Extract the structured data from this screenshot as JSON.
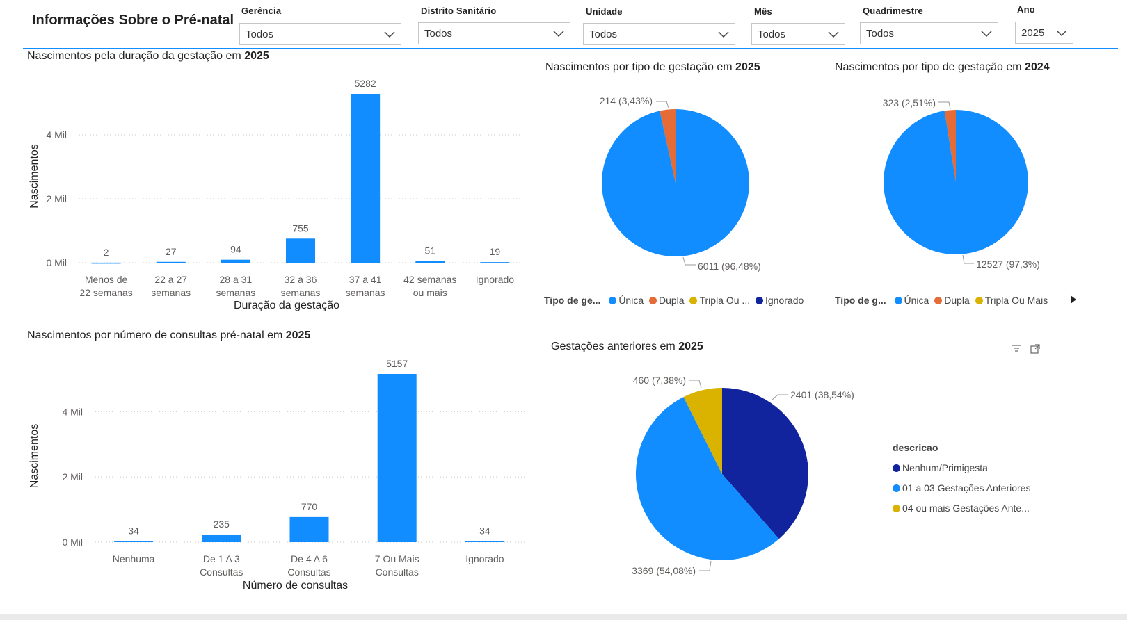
{
  "header": {
    "title": "Informações Sobre o Pré-natal"
  },
  "filters": [
    {
      "label": "Gerência",
      "value": "Todos"
    },
    {
      "label": "Distrito Sanitário",
      "value": "Todos"
    },
    {
      "label": "Unidade",
      "value": "Todos"
    },
    {
      "label": "Mês",
      "value": "Todos"
    },
    {
      "label": "Quadrimestre",
      "value": "Todos"
    },
    {
      "label": "Ano",
      "value": "2025"
    }
  ],
  "colors": {
    "accent": "#118dff",
    "unica": "#118dff",
    "dupla": "#e66c37",
    "tripla": "#d9b300",
    "ignorado": "#12239e"
  },
  "chart_data": [
    {
      "type": "bar",
      "title": "Nascimentos pela duração da gestação em",
      "title_year": "2025",
      "xlabel": "Duração da gestação",
      "ylabel": "Nascimentos",
      "categories": [
        [
          "Menos de",
          "22 semanas"
        ],
        [
          "22 a 27",
          "semanas"
        ],
        [
          "28 a 31",
          "semanas"
        ],
        [
          "32 a 36",
          "semanas"
        ],
        [
          "37 a 41",
          "semanas"
        ],
        [
          "42 semanas",
          "ou mais"
        ],
        [
          "Ignorado"
        ]
      ],
      "values": [
        2,
        27,
        94,
        755,
        5282,
        51,
        19
      ],
      "ylim": [
        0,
        5282
      ],
      "yticks": [
        {
          "v": 0,
          "label": "0 Mil"
        },
        {
          "v": 2000,
          "label": "2 Mil"
        },
        {
          "v": 4000,
          "label": "4 Mil"
        }
      ],
      "grid": true
    },
    {
      "type": "bar",
      "title": "Nascimentos por número de consultas pré-natal em",
      "title_year": "2025",
      "xlabel": "Número de consultas",
      "ylabel": "Nascimentos",
      "categories": [
        [
          "Nenhuma"
        ],
        [
          "De 1 A 3",
          "Consultas"
        ],
        [
          "De 4 A 6",
          "Consultas"
        ],
        [
          "7 Ou Mais",
          "Consultas"
        ],
        [
          "Ignorado"
        ]
      ],
      "values": [
        34,
        235,
        770,
        5157,
        34
      ],
      "ylim": [
        0,
        5157
      ],
      "yticks": [
        {
          "v": 0,
          "label": "0 Mil"
        },
        {
          "v": 2000,
          "label": "2 Mil"
        },
        {
          "v": 4000,
          "label": "4 Mil"
        }
      ],
      "grid": true
    },
    {
      "type": "pie",
      "title": "Nascimentos por tipo de gestação em",
      "title_year": "2025",
      "slices": [
        {
          "name": "Única",
          "value": 6011,
          "label": "6011 (96,48%)"
        },
        {
          "name": "Dupla",
          "value": 214,
          "label": "214 (3,43%)"
        }
      ],
      "legend": {
        "title": "Tipo de ge...",
        "items": [
          "Única",
          "Dupla",
          "Tripla Ou ...",
          "Ignorado"
        ]
      }
    },
    {
      "type": "pie",
      "title": "Nascimentos por tipo de gestação em",
      "title_year": "2024",
      "slices": [
        {
          "name": "Única",
          "value": 12527,
          "label": "12527 (97,3%)"
        },
        {
          "name": "Dupla",
          "value": 323,
          "label": "323 (2,51%)"
        }
      ],
      "legend": {
        "title": "Tipo de g...",
        "items": [
          "Única",
          "Dupla",
          "Tripla Ou Mais"
        ]
      }
    },
    {
      "type": "pie",
      "title": "Gestações anteriores em",
      "title_year": "2025",
      "slices": [
        {
          "name": "Nenhum/Primigesta",
          "value": 2401,
          "label": "2401 (38,54%)"
        },
        {
          "name": "01 a 03 Gestações Anteriores",
          "value": 3369,
          "label": "3369 (54,08%)"
        },
        {
          "name": "04 ou mais Gestações Anteriores",
          "value": 460,
          "label": "460 (7,38%)"
        }
      ],
      "legend": {
        "title": "descricao",
        "items": [
          "Nenhum/Primigesta",
          "01 a 03 Gestações Anteriores",
          "04 ou mais Gestações Ante..."
        ]
      }
    }
  ]
}
